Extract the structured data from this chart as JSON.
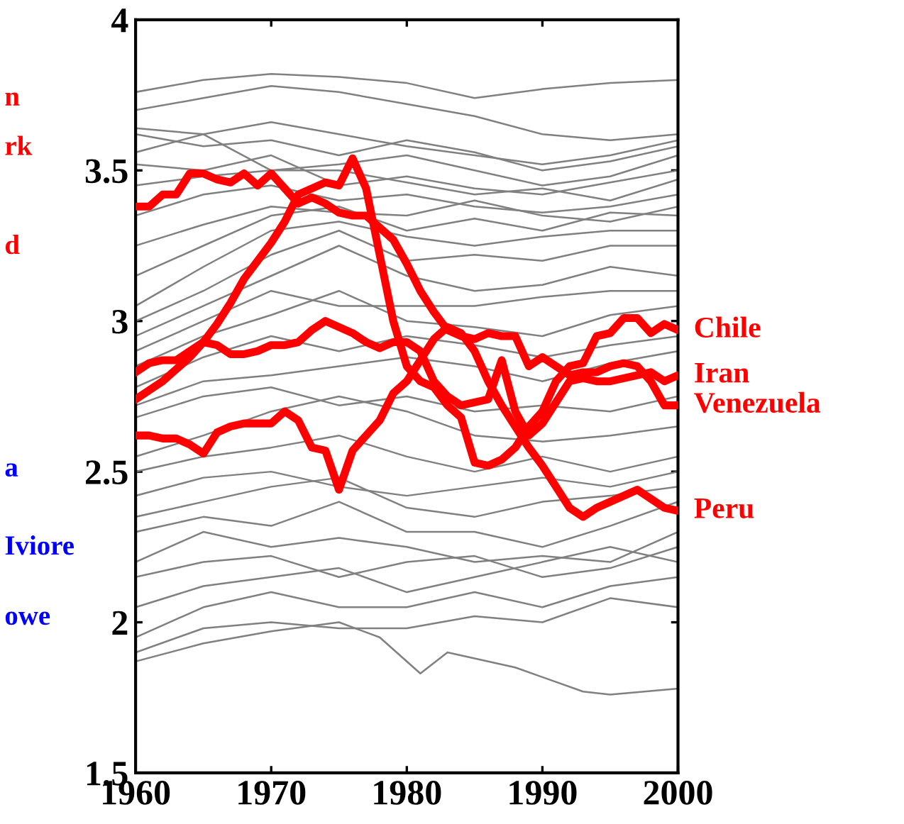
{
  "chart_data": {
    "type": "line",
    "xlim": [
      1960,
      2000
    ],
    "ylim": [
      1.5,
      4
    ],
    "xticks": [
      1960,
      1970,
      1980,
      1990,
      2000
    ],
    "yticks": [
      1.5,
      2,
      2.5,
      3,
      3.5,
      4
    ],
    "grid": false,
    "legend": false,
    "marker": "none",
    "line_style": "solid",
    "x": [
      1960,
      1965,
      1970,
      1975,
      1980,
      1985,
      1990,
      1995,
      2000
    ],
    "series": [
      {
        "color": "#808080",
        "values": [
          3.76,
          3.8,
          3.82,
          3.81,
          3.79,
          3.74,
          3.77,
          3.79,
          3.8
        ]
      },
      {
        "color": "#808080",
        "values": [
          3.7,
          3.74,
          3.78,
          3.76,
          3.72,
          3.68,
          3.62,
          3.6,
          3.62
        ]
      },
      {
        "color": "#808080",
        "values": [
          3.64,
          3.62,
          3.66,
          3.62,
          3.58,
          3.55,
          3.52,
          3.55,
          3.6
        ]
      },
      {
        "color": "#808080",
        "values": [
          3.62,
          3.58,
          3.6,
          3.55,
          3.6,
          3.56,
          3.5,
          3.53,
          3.58
        ]
      },
      {
        "color": "#808080",
        "values": [
          3.56,
          3.62,
          3.5,
          3.52,
          3.55,
          3.5,
          3.45,
          3.48,
          3.55
        ]
      },
      {
        "color": "#808080",
        "values": [
          3.52,
          3.5,
          3.55,
          3.45,
          3.48,
          3.44,
          3.42,
          3.46,
          3.5
        ]
      },
      {
        "color": "#808080",
        "values": [
          3.45,
          3.48,
          3.5,
          3.5,
          3.46,
          3.42,
          3.44,
          3.4,
          3.47
        ]
      },
      {
        "color": "#808080",
        "values": [
          3.35,
          3.42,
          3.45,
          3.4,
          3.42,
          3.38,
          3.36,
          3.38,
          3.42
        ]
      },
      {
        "color": "#808080",
        "values": [
          3.25,
          3.32,
          3.38,
          3.36,
          3.35,
          3.4,
          3.35,
          3.33,
          3.38
        ]
      },
      {
        "color": "#808080",
        "values": [
          3.15,
          3.25,
          3.35,
          3.38,
          3.3,
          3.34,
          3.3,
          3.36,
          3.35
        ]
      },
      {
        "color": "#808080",
        "values": [
          3.05,
          3.18,
          3.3,
          3.33,
          3.28,
          3.25,
          3.28,
          3.3,
          3.3
        ]
      },
      {
        "color": "#808080",
        "values": [
          3.0,
          3.1,
          3.22,
          3.3,
          3.2,
          3.22,
          3.2,
          3.25,
          3.25
        ]
      },
      {
        "color": "#808080",
        "values": [
          2.95,
          3.05,
          3.15,
          3.25,
          3.15,
          3.1,
          3.12,
          3.18,
          3.15
        ]
      },
      {
        "color": "#808080",
        "values": [
          2.9,
          3.0,
          3.1,
          3.05,
          3.05,
          3.05,
          3.08,
          3.1,
          3.1
        ]
      },
      {
        "color": "#808080",
        "values": [
          2.85,
          2.95,
          3.02,
          3.1,
          3.0,
          2.98,
          2.95,
          3.02,
          3.05
        ]
      },
      {
        "color": "#808080",
        "values": [
          2.78,
          2.88,
          2.95,
          2.9,
          2.95,
          2.92,
          2.88,
          2.92,
          2.95
        ]
      },
      {
        "color": "#808080",
        "values": [
          2.72,
          2.8,
          2.82,
          2.85,
          2.88,
          2.85,
          2.8,
          2.86,
          2.9
        ]
      },
      {
        "color": "#808080",
        "values": [
          2.68,
          2.75,
          2.78,
          2.72,
          2.75,
          2.7,
          2.72,
          2.7,
          2.75
        ]
      },
      {
        "color": "#808080",
        "values": [
          2.55,
          2.62,
          2.7,
          2.75,
          2.7,
          2.62,
          2.6,
          2.62,
          2.65
        ]
      },
      {
        "color": "#808080",
        "values": [
          2.5,
          2.55,
          2.58,
          2.62,
          2.55,
          2.5,
          2.55,
          2.5,
          2.55
        ]
      },
      {
        "color": "#808080",
        "values": [
          2.42,
          2.48,
          2.5,
          2.45,
          2.42,
          2.45,
          2.48,
          2.45,
          2.5
        ]
      },
      {
        "color": "#808080",
        "values": [
          2.35,
          2.4,
          2.45,
          2.48,
          2.38,
          2.35,
          2.4,
          2.42,
          2.45
        ]
      },
      {
        "color": "#808080",
        "values": [
          2.3,
          2.35,
          2.32,
          2.4,
          2.3,
          2.3,
          2.25,
          2.32,
          2.4
        ]
      },
      {
        "color": "#808080",
        "values": [
          2.2,
          2.3,
          2.25,
          2.28,
          2.25,
          2.2,
          2.22,
          2.2,
          2.3
        ]
      },
      {
        "color": "#808080",
        "values": [
          2.15,
          2.2,
          2.22,
          2.15,
          2.2,
          2.22,
          2.15,
          2.18,
          2.25
        ]
      },
      {
        "color": "#808080",
        "values": [
          2.05,
          2.12,
          2.15,
          2.18,
          2.1,
          2.15,
          2.2,
          2.25,
          2.2
        ]
      },
      {
        "color": "#808080",
        "values": [
          1.95,
          2.05,
          2.1,
          2.05,
          2.05,
          2.1,
          2.05,
          2.12,
          2.15
        ]
      },
      {
        "color": "#808080",
        "values": [
          1.9,
          1.98,
          2.0,
          1.98,
          1.98,
          2.02,
          2.0,
          2.08,
          2.05
        ]
      },
      {
        "color": "#808080",
        "x": [
          1960,
          1965,
          1970,
          1975,
          1978,
          1981,
          1983,
          1985,
          1988,
          1993,
          1995,
          2000
        ],
        "values": [
          1.87,
          1.93,
          1.97,
          2.0,
          1.95,
          1.83,
          1.9,
          1.88,
          1.85,
          1.77,
          1.76,
          1.78
        ]
      },
      {
        "name": "Chile",
        "color": "#ff0000",
        "x": [
          1960,
          1961,
          1962,
          1963,
          1964,
          1965,
          1966,
          1967,
          1968,
          1969,
          1970,
          1971,
          1972,
          1973,
          1974,
          1975,
          1976,
          1977,
          1978,
          1979,
          1980,
          1981,
          1982,
          1983,
          1984,
          1985,
          1986,
          1987,
          1988,
          1989,
          1990,
          1991,
          1992,
          1993,
          1994,
          1995,
          1996,
          1997,
          1998,
          1999,
          2000
        ],
        "values": [
          2.74,
          2.77,
          2.8,
          2.84,
          2.88,
          2.93,
          2.99,
          3.06,
          3.14,
          3.2,
          3.26,
          3.33,
          3.42,
          3.44,
          3.46,
          3.45,
          3.54,
          3.44,
          3.22,
          3.0,
          2.85,
          2.8,
          2.78,
          2.72,
          2.68,
          2.53,
          2.52,
          2.54,
          2.58,
          2.65,
          2.7,
          2.8,
          2.85,
          2.86,
          2.95,
          2.96,
          3.01,
          3.01,
          2.96,
          2.99,
          2.97
        ]
      },
      {
        "name": "Iran",
        "color": "#ff0000",
        "x": [
          1960,
          1961,
          1962,
          1963,
          1964,
          1965,
          1966,
          1967,
          1968,
          1969,
          1970,
          1971,
          1972,
          1973,
          1974,
          1975,
          1976,
          1977,
          1978,
          1979,
          1980,
          1981,
          1982,
          1983,
          1984,
          1985,
          1986,
          1987,
          1988,
          1989,
          1990,
          1991,
          1992,
          1993,
          1994,
          1995,
          1996,
          1997,
          1998,
          1999,
          2000
        ],
        "values": [
          2.83,
          2.86,
          2.87,
          2.87,
          2.9,
          2.93,
          2.92,
          2.89,
          2.89,
          2.9,
          2.92,
          2.92,
          2.93,
          2.97,
          3.0,
          2.98,
          2.96,
          2.93,
          2.91,
          2.93,
          2.93,
          2.9,
          2.8,
          2.75,
          2.72,
          2.73,
          2.74,
          2.87,
          2.7,
          2.62,
          2.66,
          2.73,
          2.8,
          2.81,
          2.8,
          2.8,
          2.81,
          2.82,
          2.83,
          2.8,
          2.82
        ]
      },
      {
        "name": "Venezuela",
        "color": "#ff0000",
        "x": [
          1960,
          1961,
          1962,
          1963,
          1964,
          1965,
          1966,
          1967,
          1968,
          1969,
          1970,
          1971,
          1972,
          1973,
          1974,
          1975,
          1976,
          1977,
          1978,
          1979,
          1980,
          1981,
          1982,
          1983,
          1984,
          1985,
          1986,
          1987,
          1988,
          1989,
          1990,
          1991,
          1992,
          1993,
          1994,
          1995,
          1996,
          1997,
          1998,
          1999,
          2000
        ],
        "values": [
          3.38,
          3.38,
          3.42,
          3.42,
          3.49,
          3.49,
          3.47,
          3.46,
          3.49,
          3.45,
          3.49,
          3.44,
          3.39,
          3.41,
          3.39,
          3.36,
          3.35,
          3.35,
          3.31,
          3.27,
          3.19,
          3.1,
          3.03,
          2.97,
          2.95,
          2.94,
          2.96,
          2.95,
          2.95,
          2.85,
          2.88,
          2.85,
          2.82,
          2.83,
          2.83,
          2.85,
          2.86,
          2.85,
          2.8,
          2.72,
          2.72
        ]
      },
      {
        "name": "Peru",
        "color": "#ff0000",
        "x": [
          1960,
          1961,
          1962,
          1963,
          1964,
          1965,
          1966,
          1967,
          1968,
          1969,
          1970,
          1971,
          1972,
          1973,
          1974,
          1975,
          1976,
          1977,
          1978,
          1979,
          1980,
          1981,
          1982,
          1983,
          1984,
          1985,
          1986,
          1987,
          1988,
          1989,
          1990,
          1991,
          1992,
          1993,
          1994,
          1995,
          1996,
          1997,
          1998,
          1999,
          2000
        ],
        "values": [
          2.62,
          2.62,
          2.61,
          2.61,
          2.59,
          2.56,
          2.63,
          2.65,
          2.66,
          2.66,
          2.66,
          2.7,
          2.67,
          2.58,
          2.57,
          2.44,
          2.57,
          2.62,
          2.67,
          2.76,
          2.8,
          2.87,
          2.94,
          2.98,
          2.96,
          2.9,
          2.8,
          2.72,
          2.65,
          2.58,
          2.52,
          2.45,
          2.38,
          2.35,
          2.38,
          2.4,
          2.42,
          2.44,
          2.41,
          2.38,
          2.37
        ]
      }
    ],
    "annotations": [
      "n",
      "rk",
      "d",
      "a",
      "Iviore",
      "owe"
    ]
  }
}
